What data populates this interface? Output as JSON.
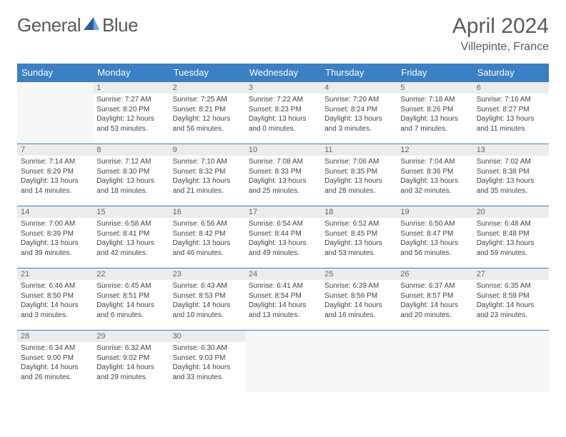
{
  "logo": {
    "text1": "General",
    "text2": "Blue"
  },
  "title": "April 2024",
  "location": "Villepinte, France",
  "headers": [
    "Sunday",
    "Monday",
    "Tuesday",
    "Wednesday",
    "Thursday",
    "Friday",
    "Saturday"
  ],
  "colors": {
    "header_bg": "#3b7fc4",
    "header_fg": "#ffffff",
    "daynum_bg": "#ececec",
    "text": "#444444",
    "title": "#5a5a5a"
  },
  "weeks": [
    [
      {
        "n": "",
        "sr": "",
        "ss": "",
        "dl": ""
      },
      {
        "n": "1",
        "sr": "Sunrise: 7:27 AM",
        "ss": "Sunset: 8:20 PM",
        "dl": "Daylight: 12 hours and 53 minutes."
      },
      {
        "n": "2",
        "sr": "Sunrise: 7:25 AM",
        "ss": "Sunset: 8:21 PM",
        "dl": "Daylight: 12 hours and 56 minutes."
      },
      {
        "n": "3",
        "sr": "Sunrise: 7:22 AM",
        "ss": "Sunset: 8:23 PM",
        "dl": "Daylight: 13 hours and 0 minutes."
      },
      {
        "n": "4",
        "sr": "Sunrise: 7:20 AM",
        "ss": "Sunset: 8:24 PM",
        "dl": "Daylight: 13 hours and 3 minutes."
      },
      {
        "n": "5",
        "sr": "Sunrise: 7:18 AM",
        "ss": "Sunset: 8:26 PM",
        "dl": "Daylight: 13 hours and 7 minutes."
      },
      {
        "n": "6",
        "sr": "Sunrise: 7:16 AM",
        "ss": "Sunset: 8:27 PM",
        "dl": "Daylight: 13 hours and 11 minutes."
      }
    ],
    [
      {
        "n": "7",
        "sr": "Sunrise: 7:14 AM",
        "ss": "Sunset: 8:29 PM",
        "dl": "Daylight: 13 hours and 14 minutes."
      },
      {
        "n": "8",
        "sr": "Sunrise: 7:12 AM",
        "ss": "Sunset: 8:30 PM",
        "dl": "Daylight: 13 hours and 18 minutes."
      },
      {
        "n": "9",
        "sr": "Sunrise: 7:10 AM",
        "ss": "Sunset: 8:32 PM",
        "dl": "Daylight: 13 hours and 21 minutes."
      },
      {
        "n": "10",
        "sr": "Sunrise: 7:08 AM",
        "ss": "Sunset: 8:33 PM",
        "dl": "Daylight: 13 hours and 25 minutes."
      },
      {
        "n": "11",
        "sr": "Sunrise: 7:06 AM",
        "ss": "Sunset: 8:35 PM",
        "dl": "Daylight: 13 hours and 28 minutes."
      },
      {
        "n": "12",
        "sr": "Sunrise: 7:04 AM",
        "ss": "Sunset: 8:36 PM",
        "dl": "Daylight: 13 hours and 32 minutes."
      },
      {
        "n": "13",
        "sr": "Sunrise: 7:02 AM",
        "ss": "Sunset: 8:38 PM",
        "dl": "Daylight: 13 hours and 35 minutes."
      }
    ],
    [
      {
        "n": "14",
        "sr": "Sunrise: 7:00 AM",
        "ss": "Sunset: 8:39 PM",
        "dl": "Daylight: 13 hours and 39 minutes."
      },
      {
        "n": "15",
        "sr": "Sunrise: 6:58 AM",
        "ss": "Sunset: 8:41 PM",
        "dl": "Daylight: 13 hours and 42 minutes."
      },
      {
        "n": "16",
        "sr": "Sunrise: 6:56 AM",
        "ss": "Sunset: 8:42 PM",
        "dl": "Daylight: 13 hours and 46 minutes."
      },
      {
        "n": "17",
        "sr": "Sunrise: 6:54 AM",
        "ss": "Sunset: 8:44 PM",
        "dl": "Daylight: 13 hours and 49 minutes."
      },
      {
        "n": "18",
        "sr": "Sunrise: 6:52 AM",
        "ss": "Sunset: 8:45 PM",
        "dl": "Daylight: 13 hours and 53 minutes."
      },
      {
        "n": "19",
        "sr": "Sunrise: 6:50 AM",
        "ss": "Sunset: 8:47 PM",
        "dl": "Daylight: 13 hours and 56 minutes."
      },
      {
        "n": "20",
        "sr": "Sunrise: 6:48 AM",
        "ss": "Sunset: 8:48 PM",
        "dl": "Daylight: 13 hours and 59 minutes."
      }
    ],
    [
      {
        "n": "21",
        "sr": "Sunrise: 6:46 AM",
        "ss": "Sunset: 8:50 PM",
        "dl": "Daylight: 14 hours and 3 minutes."
      },
      {
        "n": "22",
        "sr": "Sunrise: 6:45 AM",
        "ss": "Sunset: 8:51 PM",
        "dl": "Daylight: 14 hours and 6 minutes."
      },
      {
        "n": "23",
        "sr": "Sunrise: 6:43 AM",
        "ss": "Sunset: 8:53 PM",
        "dl": "Daylight: 14 hours and 10 minutes."
      },
      {
        "n": "24",
        "sr": "Sunrise: 6:41 AM",
        "ss": "Sunset: 8:54 PM",
        "dl": "Daylight: 14 hours and 13 minutes."
      },
      {
        "n": "25",
        "sr": "Sunrise: 6:39 AM",
        "ss": "Sunset: 8:56 PM",
        "dl": "Daylight: 14 hours and 16 minutes."
      },
      {
        "n": "26",
        "sr": "Sunrise: 6:37 AM",
        "ss": "Sunset: 8:57 PM",
        "dl": "Daylight: 14 hours and 20 minutes."
      },
      {
        "n": "27",
        "sr": "Sunrise: 6:35 AM",
        "ss": "Sunset: 8:59 PM",
        "dl": "Daylight: 14 hours and 23 minutes."
      }
    ],
    [
      {
        "n": "28",
        "sr": "Sunrise: 6:34 AM",
        "ss": "Sunset: 9:00 PM",
        "dl": "Daylight: 14 hours and 26 minutes."
      },
      {
        "n": "29",
        "sr": "Sunrise: 6:32 AM",
        "ss": "Sunset: 9:02 PM",
        "dl": "Daylight: 14 hours and 29 minutes."
      },
      {
        "n": "30",
        "sr": "Sunrise: 6:30 AM",
        "ss": "Sunset: 9:03 PM",
        "dl": "Daylight: 14 hours and 33 minutes."
      },
      {
        "n": "",
        "sr": "",
        "ss": "",
        "dl": ""
      },
      {
        "n": "",
        "sr": "",
        "ss": "",
        "dl": ""
      },
      {
        "n": "",
        "sr": "",
        "ss": "",
        "dl": ""
      },
      {
        "n": "",
        "sr": "",
        "ss": "",
        "dl": ""
      }
    ]
  ]
}
